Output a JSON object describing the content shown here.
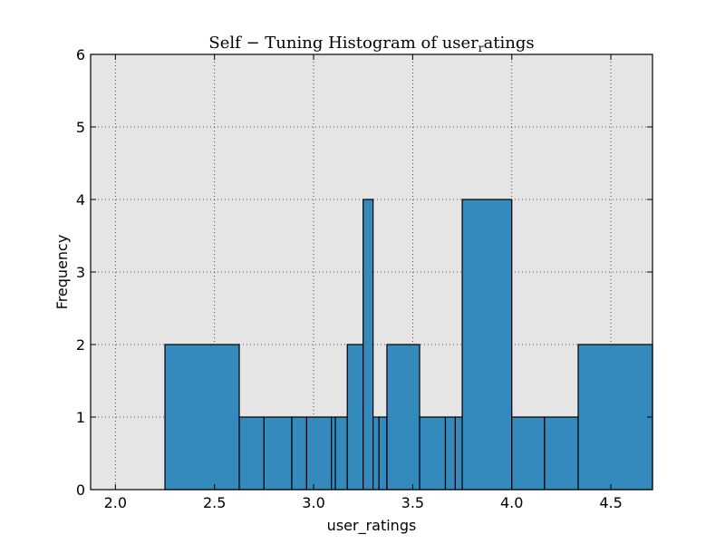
{
  "chart_data": {
    "type": "bar",
    "title": "Self − Tuning Histogram of user",
    "title_subscript": "r",
    "title_suffix": "atings",
    "xlabel": "user_ratings",
    "ylabel": "Frequency",
    "xlim": [
      1.875,
      4.71
    ],
    "ylim": [
      0,
      6
    ],
    "x_ticks": [
      {
        "value": 2.0,
        "label": "2.0"
      },
      {
        "value": 2.5,
        "label": "2.5"
      },
      {
        "value": 3.0,
        "label": "3.0"
      },
      {
        "value": 3.5,
        "label": "3.5"
      },
      {
        "value": 4.0,
        "label": "4.0"
      },
      {
        "value": 4.5,
        "label": "4.5"
      }
    ],
    "y_ticks": [
      {
        "value": 0,
        "label": "0"
      },
      {
        "value": 1,
        "label": "1"
      },
      {
        "value": 2,
        "label": "2"
      },
      {
        "value": 3,
        "label": "3"
      },
      {
        "value": 4,
        "label": "4"
      },
      {
        "value": 5,
        "label": "5"
      },
      {
        "value": 6,
        "label": "6"
      }
    ],
    "grid": true,
    "bars": [
      {
        "x0": 2.25,
        "x1": 2.625,
        "count": 2
      },
      {
        "x0": 2.625,
        "x1": 2.75,
        "count": 1
      },
      {
        "x0": 2.75,
        "x1": 2.89,
        "count": 1
      },
      {
        "x0": 2.89,
        "x1": 2.965,
        "count": 1
      },
      {
        "x0": 2.965,
        "x1": 3.09,
        "count": 1
      },
      {
        "x0": 3.09,
        "x1": 3.11,
        "count": 1
      },
      {
        "x0": 3.11,
        "x1": 3.17,
        "count": 1
      },
      {
        "x0": 3.17,
        "x1": 3.25,
        "count": 2
      },
      {
        "x0": 3.25,
        "x1": 3.3,
        "count": 4
      },
      {
        "x0": 3.3,
        "x1": 3.33,
        "count": 1
      },
      {
        "x0": 3.33,
        "x1": 3.37,
        "count": 1
      },
      {
        "x0": 3.37,
        "x1": 3.535,
        "count": 2
      },
      {
        "x0": 3.535,
        "x1": 3.665,
        "count": 1
      },
      {
        "x0": 3.665,
        "x1": 3.715,
        "count": 1
      },
      {
        "x0": 3.715,
        "x1": 3.75,
        "count": 1
      },
      {
        "x0": 3.75,
        "x1": 4.0,
        "count": 4
      },
      {
        "x0": 4.0,
        "x1": 4.165,
        "count": 1
      },
      {
        "x0": 4.165,
        "x1": 4.335,
        "count": 1
      },
      {
        "x0": 4.335,
        "x1": 4.71,
        "count": 2
      }
    ],
    "colors": {
      "bar_fill": "#348abd",
      "bar_edge": "#000000",
      "plot_bg": "#e5e5e5",
      "grid": "#222222"
    }
  }
}
